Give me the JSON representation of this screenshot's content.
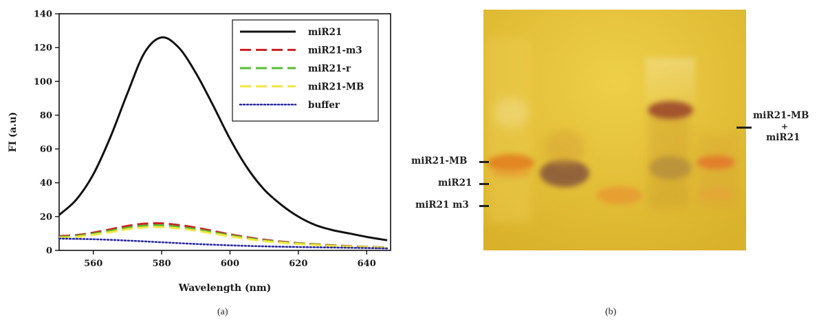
{
  "chart_data": {
    "type": "line",
    "xlabel": "Wavelength (nm)",
    "ylabel": "FI (a.u)",
    "xlim": [
      550,
      647
    ],
    "ylim": [
      0,
      140
    ],
    "xticks": [
      560,
      580,
      600,
      620,
      640
    ],
    "yticks": [
      0,
      20,
      40,
      60,
      80,
      100,
      120,
      140
    ],
    "legend_position": "top-right",
    "series": [
      {
        "name": "miR21",
        "color": "#111111",
        "style": "solid",
        "x": [
          550,
          555,
          560,
          565,
          570,
          575,
          580,
          585,
          590,
          595,
          600,
          605,
          610,
          615,
          620,
          625,
          630,
          635,
          640,
          646
        ],
        "y": [
          21,
          30,
          45,
          67,
          93,
          117,
          126,
          120,
          105,
          86,
          66,
          49,
          36,
          27,
          20,
          15,
          12,
          10,
          8,
          6
        ]
      },
      {
        "name": "miR21-m3",
        "color": "#cc2222",
        "style": "dashed",
        "x": [
          550,
          555,
          560,
          565,
          570,
          575,
          580,
          585,
          590,
          595,
          600,
          605,
          610,
          615,
          620,
          625,
          630,
          635,
          640,
          646
        ],
        "y": [
          8.5,
          9,
          10.5,
          12.5,
          14.5,
          15.8,
          16,
          15,
          13.5,
          11.5,
          9.5,
          7.8,
          6.3,
          5.2,
          4.3,
          3.6,
          3.0,
          2.5,
          2.1,
          1.8
        ]
      },
      {
        "name": "miR21-r",
        "color": "#55bb33",
        "style": "dashed",
        "x": [
          550,
          555,
          560,
          565,
          570,
          575,
          580,
          585,
          590,
          595,
          600,
          605,
          610,
          615,
          620,
          625,
          630,
          635,
          640,
          646
        ],
        "y": [
          8,
          8.5,
          9.8,
          11.6,
          13.4,
          14.6,
          14.8,
          13.9,
          12.5,
          10.7,
          8.9,
          7.3,
          5.9,
          4.9,
          4.1,
          3.4,
          2.8,
          2.3,
          2.0,
          1.7
        ]
      },
      {
        "name": "miR21-MB",
        "color": "#f4e640",
        "style": "dashed",
        "x": [
          550,
          555,
          560,
          565,
          570,
          575,
          580,
          585,
          590,
          595,
          600,
          605,
          610,
          615,
          620,
          625,
          630,
          635,
          640,
          646
        ],
        "y": [
          7.5,
          8,
          9.2,
          10.8,
          12.5,
          13.6,
          13.8,
          13,
          11.7,
          10,
          8.3,
          6.8,
          5.5,
          4.6,
          3.8,
          3.2,
          2.6,
          2.2,
          1.9,
          1.6
        ]
      },
      {
        "name": "buffer",
        "color": "#2a2aa0",
        "style": "dotted",
        "x": [
          550,
          560,
          570,
          580,
          590,
          600,
          610,
          620,
          630,
          640,
          646
        ],
        "y": [
          7,
          6.6,
          5.8,
          4.8,
          3.8,
          3.0,
          2.4,
          2.0,
          1.7,
          1.4,
          1.2
        ]
      }
    ]
  },
  "panel_a_caption": "(a)",
  "panel_b_caption": "(b)",
  "gel": {
    "background_color": "#e8c233",
    "labels_left": [
      "miR21-MB",
      "miR21",
      "miR21 m3"
    ],
    "label_right_lines": [
      "miR21-MB",
      "+",
      "miR21"
    ]
  }
}
